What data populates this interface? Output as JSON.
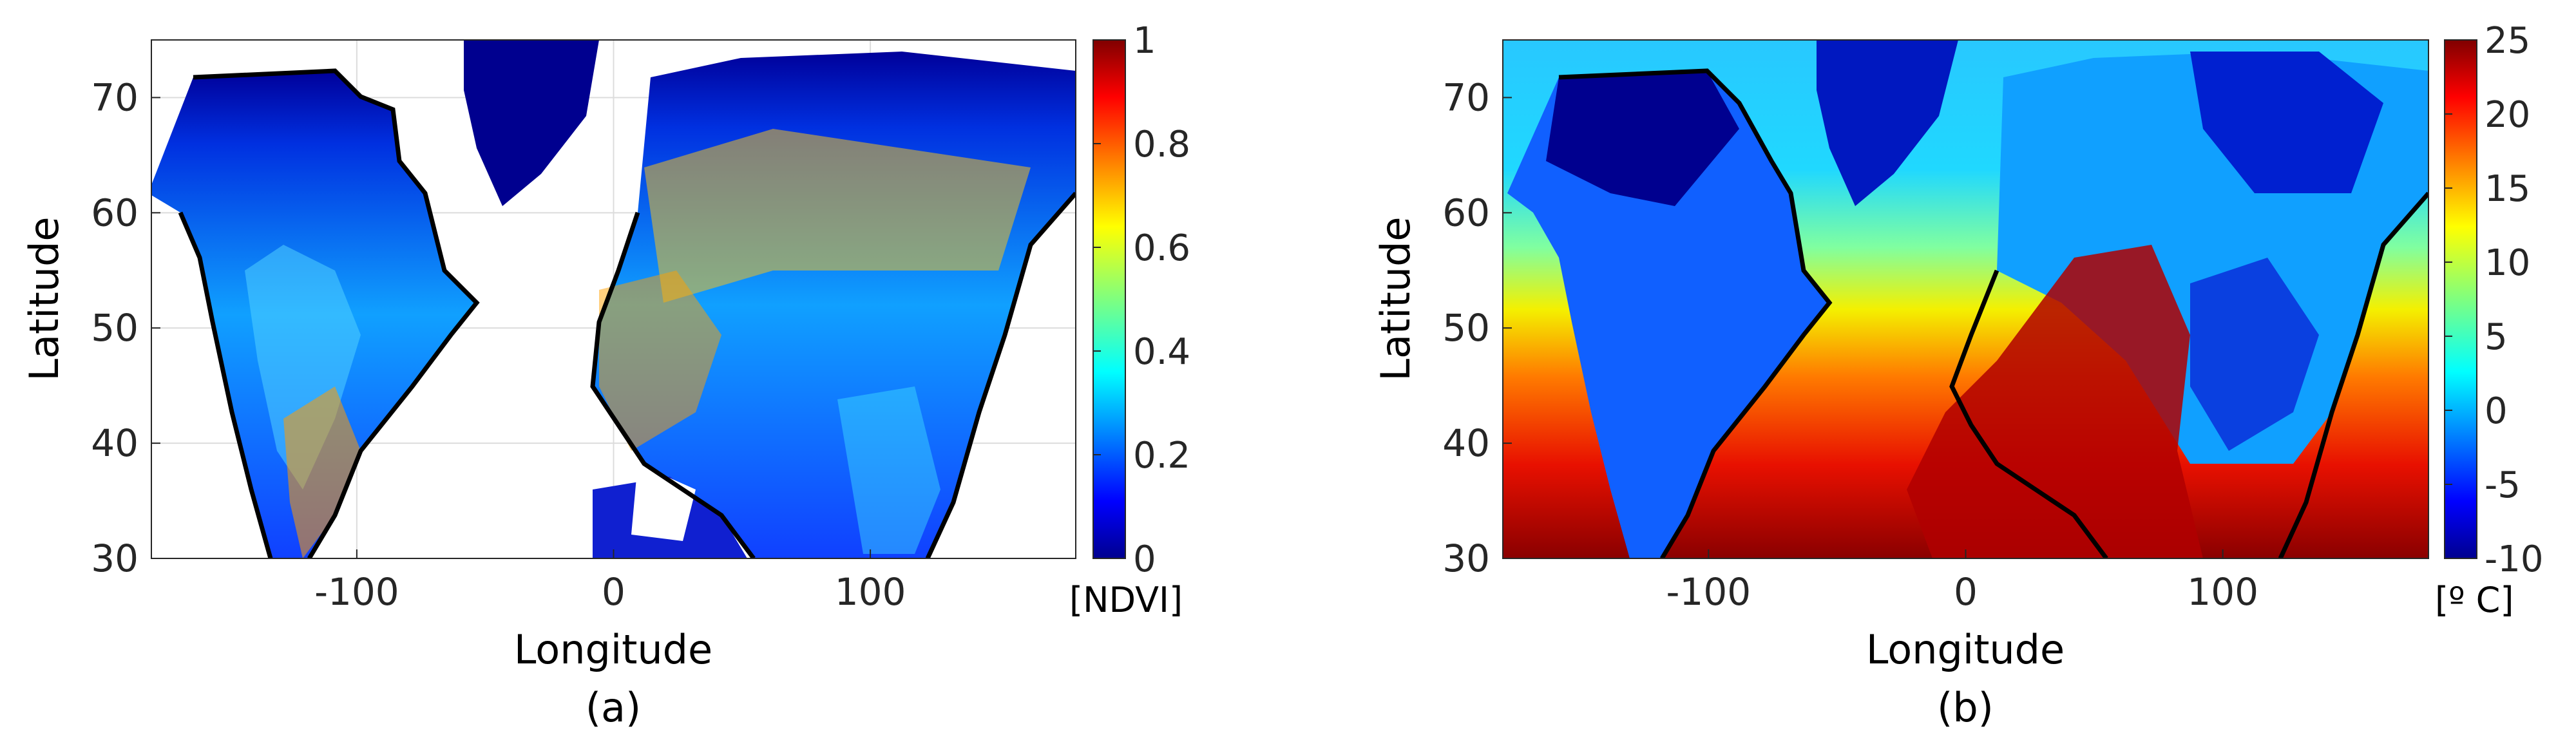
{
  "chart_data": [
    {
      "type": "heatmap",
      "panel_label": "(a)",
      "xlabel": "Longitude",
      "ylabel": "Latitude",
      "xlim": [
        -180,
        180
      ],
      "ylim": [
        30,
        75
      ],
      "xticks": [
        -100,
        0,
        100
      ],
      "yticks": [
        30,
        40,
        50,
        60,
        70
      ],
      "xtick_labels": [
        "-100",
        "0",
        "100"
      ],
      "ytick_labels": [
        "30",
        "40",
        "50",
        "60",
        "70"
      ],
      "grid": true,
      "colormap": "jet",
      "colorbar": {
        "range": [
          0,
          1
        ],
        "ticks": [
          0,
          0.2,
          0.4,
          0.6,
          0.8,
          1
        ],
        "tick_labels": [
          "0",
          "0.2",
          "0.4",
          "0.6",
          "0.8",
          "1"
        ],
        "unit_label": "[NDVI]"
      },
      "no_data_color": "#ffffff"
    },
    {
      "type": "heatmap",
      "panel_label": "(b)",
      "xlabel": "Longitude",
      "ylabel": "Latitude",
      "xlim": [
        -180,
        180
      ],
      "ylim": [
        30,
        75
      ],
      "xticks": [
        -100,
        0,
        100
      ],
      "yticks": [
        30,
        40,
        50,
        60,
        70
      ],
      "xtick_labels": [
        "-100",
        "0",
        "100"
      ],
      "ytick_labels": [
        "30",
        "40",
        "50",
        "60",
        "70"
      ],
      "grid": false,
      "colormap": "jet",
      "colorbar": {
        "range": [
          -10,
          25
        ],
        "ticks": [
          -10,
          -5,
          0,
          5,
          10,
          15,
          20,
          25
        ],
        "tick_labels": [
          "-10",
          "-5",
          "0",
          "5",
          "10",
          "15",
          "20",
          "25"
        ],
        "unit_label": "[º C]"
      }
    }
  ],
  "colors": {
    "jet_low": "#00008f",
    "jet_mid": "#7fff7f",
    "jet_high": "#800000",
    "coastline": "#000000",
    "axis": "#262626"
  }
}
